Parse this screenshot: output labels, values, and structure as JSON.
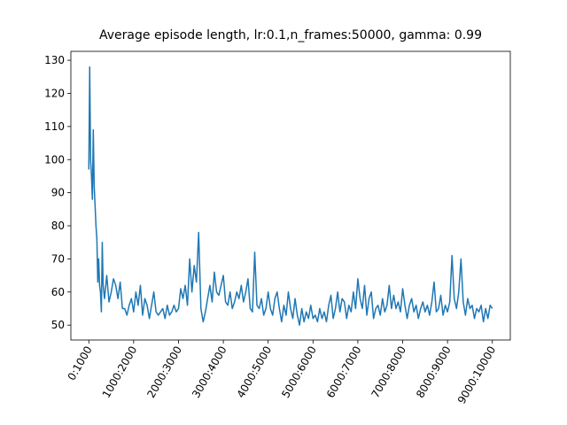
{
  "chart_data": {
    "type": "line",
    "title": "Average episode length, lr:0.1,n_frames:50000, gamma: 0.99",
    "x": [
      0,
      2,
      4,
      6,
      8,
      10,
      12,
      14,
      16,
      18,
      20,
      22,
      24,
      26,
      28,
      30,
      32,
      35,
      40,
      45,
      50,
      55,
      60,
      65,
      70,
      75,
      80,
      85,
      90,
      95,
      100,
      105,
      110,
      115,
      120,
      125,
      130,
      135,
      140,
      145,
      150,
      155,
      160,
      165,
      170,
      175,
      180,
      185,
      190,
      195,
      200,
      205,
      210,
      215,
      220,
      225,
      230,
      235,
      240,
      245,
      250,
      255,
      260,
      265,
      270,
      275,
      280,
      285,
      290,
      295,
      300,
      305,
      310,
      315,
      320,
      325,
      330,
      335,
      340,
      345,
      350,
      355,
      360,
      365,
      370,
      375,
      380,
      385,
      390,
      395,
      400,
      405,
      410,
      415,
      420,
      425,
      430,
      435,
      440,
      445,
      450,
      455,
      460,
      465,
      470,
      475,
      480,
      485,
      490,
      495,
      500,
      505,
      510,
      515,
      520,
      525,
      530,
      535,
      540,
      545,
      550,
      555,
      560,
      565,
      570,
      575,
      580,
      585,
      590,
      595,
      600,
      605,
      610,
      615,
      620,
      625,
      630,
      635,
      640,
      645,
      650,
      655,
      660,
      665,
      670,
      675,
      680,
      685,
      690,
      695,
      700,
      705,
      710,
      715,
      720,
      725,
      730,
      735,
      740,
      745,
      750,
      755,
      760,
      765,
      770,
      775,
      780,
      785,
      790,
      795,
      800,
      805,
      810,
      815,
      820,
      825,
      830,
      835,
      840,
      845,
      850,
      855,
      860,
      865,
      870,
      875,
      880,
      885,
      890,
      895,
      900
    ],
    "series": [
      {
        "color": "#1f77b4",
        "values": [
          97,
          128,
          100,
          95,
          88,
          109,
          92,
          86,
          80,
          76,
          63,
          70,
          62,
          60,
          54,
          75,
          62,
          58,
          65,
          57,
          60,
          64,
          62,
          58,
          63,
          55,
          55,
          53,
          56,
          58,
          54,
          60,
          56,
          62,
          53,
          58,
          56,
          52,
          56,
          60,
          54,
          53,
          54,
          55,
          52,
          56,
          53,
          54,
          56,
          54,
          55,
          61,
          58,
          62,
          56,
          70,
          60,
          68,
          63,
          78,
          55,
          51,
          54,
          58,
          62,
          57,
          66,
          60,
          59,
          62,
          65,
          57,
          56,
          60,
          55,
          57,
          60,
          58,
          62,
          57,
          60,
          64,
          55,
          54,
          72,
          56,
          55,
          58,
          53,
          55,
          60,
          55,
          53,
          58,
          60,
          55,
          51,
          56,
          53,
          60,
          55,
          52,
          58,
          53,
          50,
          55,
          51,
          54,
          52,
          56,
          52,
          53,
          51,
          55,
          52,
          54,
          51,
          56,
          59,
          52,
          55,
          60,
          54,
          58,
          57,
          52,
          56,
          54,
          60,
          55,
          64,
          58,
          55,
          62,
          53,
          58,
          60,
          52,
          55,
          56,
          53,
          58,
          54,
          56,
          62,
          55,
          59,
          55,
          57,
          54,
          61,
          56,
          52,
          56,
          58,
          54,
          56,
          52,
          55,
          57,
          54,
          56,
          53,
          57,
          63,
          54,
          55,
          59,
          53,
          56,
          54,
          57,
          71,
          58,
          55,
          60,
          70,
          57,
          53,
          58,
          55,
          56,
          52,
          55,
          54,
          56,
          51,
          55,
          52,
          56,
          55
        ]
      }
    ],
    "xlim": [
      -40,
      940
    ],
    "ylim": [
      45.5,
      132.7
    ],
    "xticks": [
      {
        "value": 0,
        "label": "0:1000"
      },
      {
        "value": 100,
        "label": "1000:2000"
      },
      {
        "value": 200,
        "label": "2000:3000"
      },
      {
        "value": 300,
        "label": "3000:4000"
      },
      {
        "value": 400,
        "label": "4000:5000"
      },
      {
        "value": 500,
        "label": "5000:6000"
      },
      {
        "value": 600,
        "label": "6000:7000"
      },
      {
        "value": 700,
        "label": "7000:8000"
      },
      {
        "value": 800,
        "label": "8000:9000"
      },
      {
        "value": 900,
        "label": "9000:10000"
      }
    ],
    "yticks": [
      50,
      60,
      70,
      80,
      90,
      100,
      110,
      120,
      130
    ]
  }
}
